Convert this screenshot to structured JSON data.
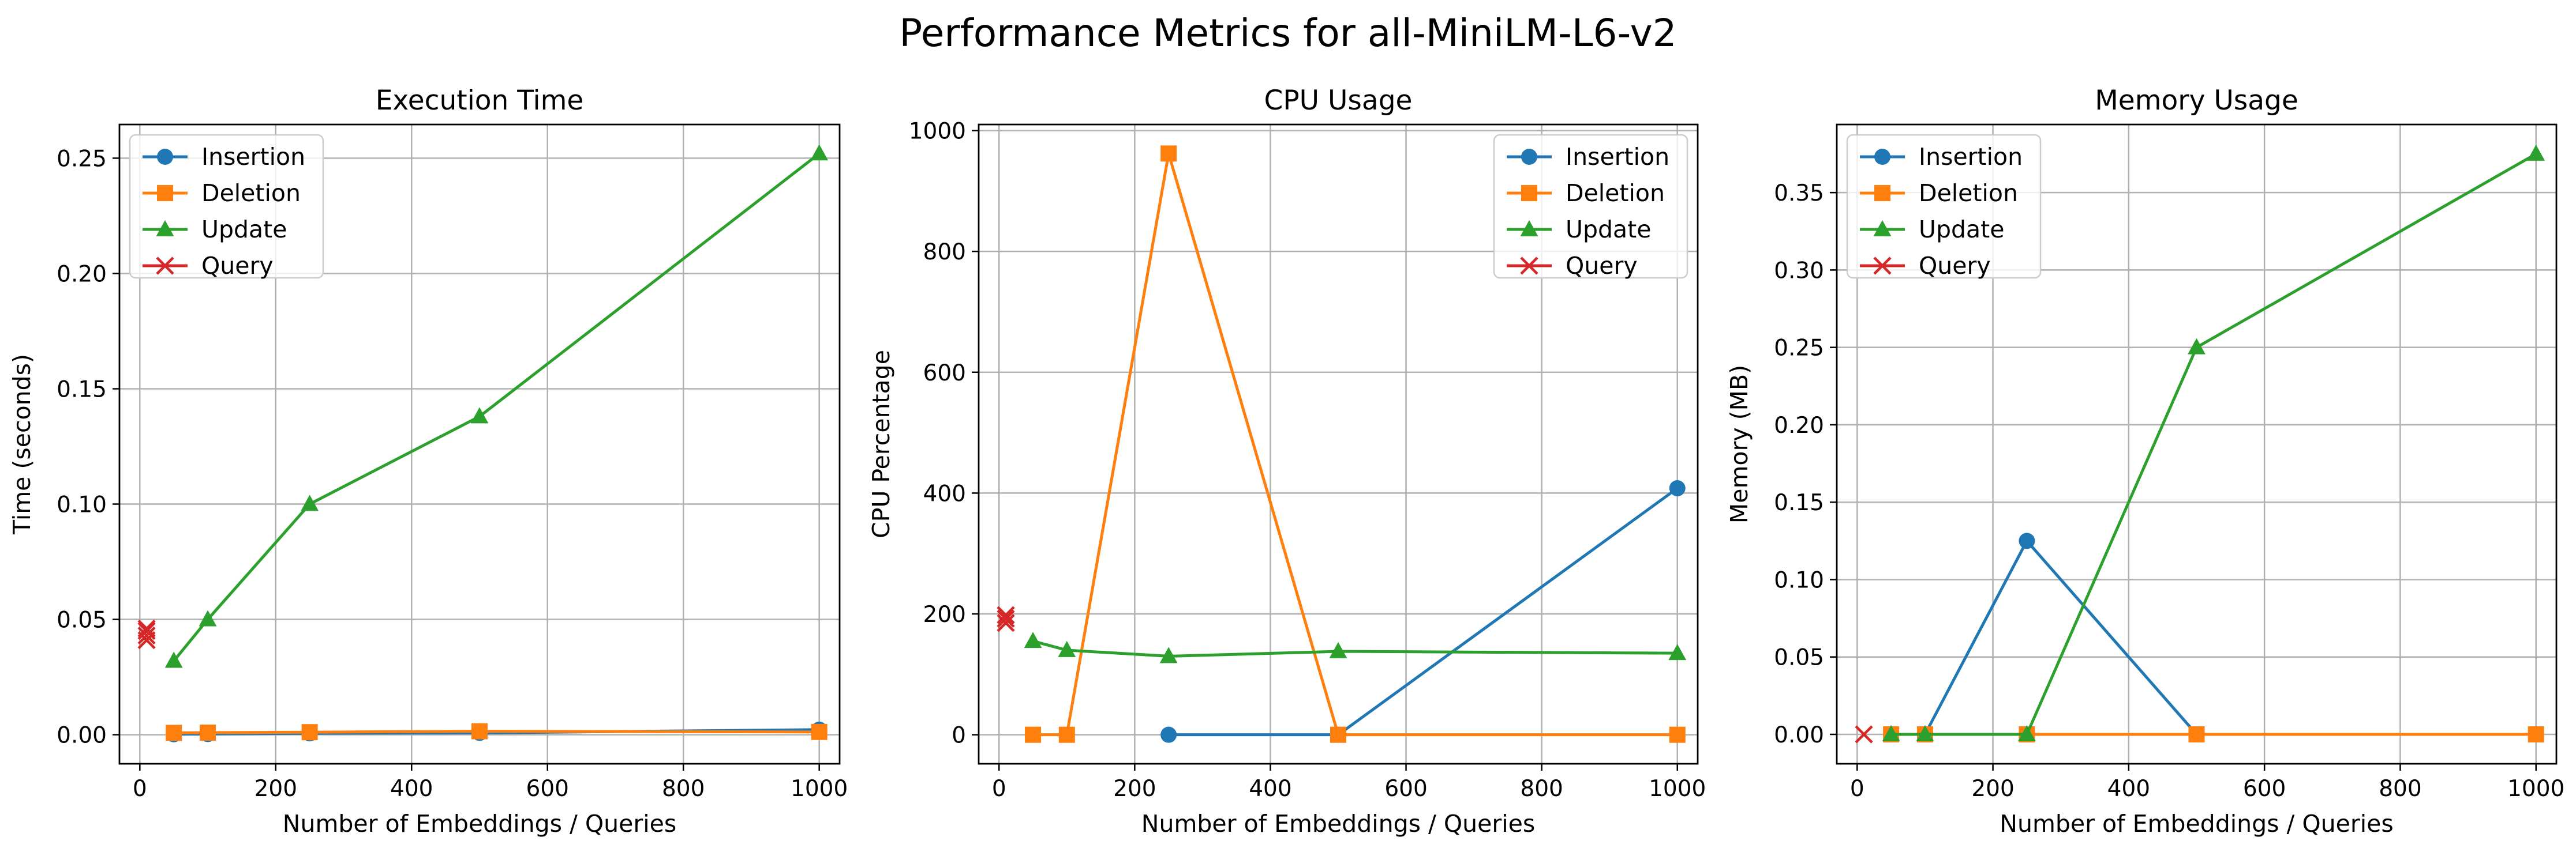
{
  "figure": {
    "title": "Performance Metrics for all-MiniLM-L6-v2"
  },
  "colors": {
    "Insertion": "#1f77b4",
    "Deletion": "#ff7f0e",
    "Update": "#2ca02c",
    "Query": "#d62728"
  },
  "chart_data": [
    {
      "type": "line",
      "title": "Execution Time",
      "xlabel": "Number of Embeddings / Queries",
      "ylabel": "Time (seconds)",
      "xlim": [
        -30,
        1030
      ],
      "ylim": [
        -0.0126,
        0.2646
      ],
      "xticks": [
        0,
        200,
        400,
        600,
        800,
        1000
      ],
      "xtick_labels": [
        "0",
        "200",
        "400",
        "600",
        "800",
        "1000"
      ],
      "yticks": [
        0.0,
        0.05,
        0.1,
        0.15,
        0.2,
        0.25
      ],
      "ytick_labels": [
        "0.00",
        "0.05",
        "0.10",
        "0.15",
        "0.20",
        "0.25"
      ],
      "grid": true,
      "legend_position": "upper left",
      "series": [
        {
          "name": "Insertion",
          "marker": "circle",
          "x": [
            50,
            100,
            250,
            500,
            1000
          ],
          "y": [
            0.0002,
            0.0003,
            0.0006,
            0.0008,
            0.0022
          ]
        },
        {
          "name": "Deletion",
          "marker": "square",
          "x": [
            50,
            100,
            250,
            500,
            1000
          ],
          "y": [
            0.0008,
            0.0009,
            0.0011,
            0.0015,
            0.0012
          ]
        },
        {
          "name": "Update",
          "marker": "triangle",
          "x": [
            50,
            100,
            250,
            500,
            1000
          ],
          "y": [
            0.032,
            0.05,
            0.1,
            0.138,
            0.252
          ]
        },
        {
          "name": "Query",
          "marker": "x",
          "x": [
            10,
            10,
            10,
            10
          ],
          "y": [
            0.041,
            0.043,
            0.045,
            0.046
          ],
          "no_line": true
        }
      ]
    },
    {
      "type": "line",
      "title": "CPU Usage",
      "xlabel": "Number of Embeddings / Queries",
      "ylabel": "CPU Percentage",
      "xlim": [
        -30,
        1030
      ],
      "ylim": [
        -48,
        1010
      ],
      "xticks": [
        0,
        200,
        400,
        600,
        800,
        1000
      ],
      "xtick_labels": [
        "0",
        "200",
        "400",
        "600",
        "800",
        "1000"
      ],
      "yticks": [
        0,
        200,
        400,
        600,
        800,
        1000
      ],
      "ytick_labels": [
        "0",
        "200",
        "400",
        "600",
        "800",
        "1000"
      ],
      "grid": true,
      "legend_position": "upper right",
      "series": [
        {
          "name": "Insertion",
          "marker": "circle",
          "x": [
            250,
            500,
            1000
          ],
          "y": [
            0,
            0,
            408
          ]
        },
        {
          "name": "Deletion",
          "marker": "square",
          "x": [
            50,
            100,
            250,
            500,
            1000
          ],
          "y": [
            0,
            0,
            962,
            0,
            0
          ]
        },
        {
          "name": "Update",
          "marker": "triangle",
          "x": [
            50,
            100,
            250,
            500,
            1000
          ],
          "y": [
            155,
            140,
            130,
            138,
            135
          ]
        },
        {
          "name": "Query",
          "marker": "x",
          "x": [
            10,
            10,
            10
          ],
          "y": [
            185,
            192,
            198
          ],
          "no_line": true
        }
      ]
    },
    {
      "type": "line",
      "title": "Memory Usage",
      "xlabel": "Number of Embeddings / Queries",
      "ylabel": "Memory (MB)",
      "xlim": [
        -30,
        1030
      ],
      "ylim": [
        -0.019,
        0.394
      ],
      "xticks": [
        0,
        200,
        400,
        600,
        800,
        1000
      ],
      "xtick_labels": [
        "0",
        "200",
        "400",
        "600",
        "800",
        "1000"
      ],
      "yticks": [
        0.0,
        0.05,
        0.1,
        0.15,
        0.2,
        0.25,
        0.3,
        0.35
      ],
      "ytick_labels": [
        "0.00",
        "0.05",
        "0.10",
        "0.15",
        "0.20",
        "0.25",
        "0.30",
        "0.35"
      ],
      "grid": true,
      "legend_position": "upper left",
      "series": [
        {
          "name": "Insertion",
          "marker": "circle",
          "x": [
            50,
            100,
            250,
            500,
            1000
          ],
          "y": [
            0,
            0,
            0.125,
            0,
            0
          ]
        },
        {
          "name": "Deletion",
          "marker": "square",
          "x": [
            50,
            100,
            250,
            500,
            1000
          ],
          "y": [
            0,
            0,
            0,
            0,
            0
          ]
        },
        {
          "name": "Update",
          "marker": "triangle",
          "x": [
            50,
            100,
            250,
            500,
            1000
          ],
          "y": [
            0,
            0,
            0,
            0.25,
            0.375
          ]
        },
        {
          "name": "Query",
          "marker": "x",
          "x": [
            10
          ],
          "y": [
            0
          ],
          "no_line": true
        }
      ]
    }
  ]
}
